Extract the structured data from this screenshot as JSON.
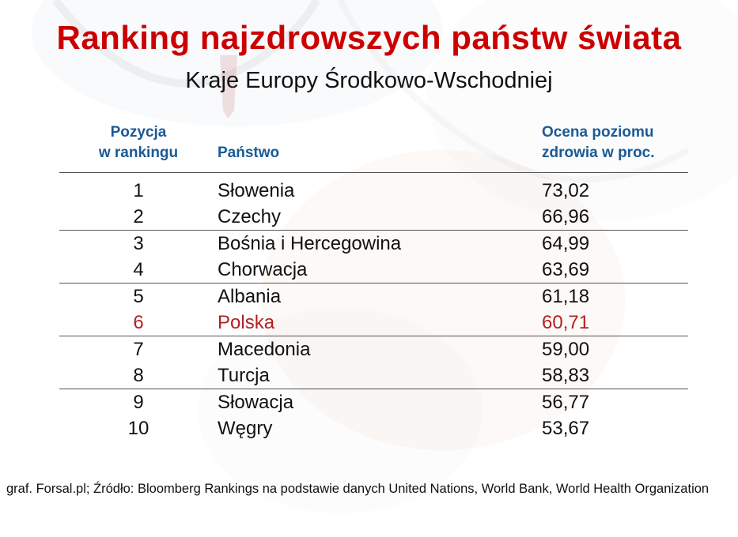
{
  "page": {
    "title": "Ranking najzdrowszych państw świata",
    "subtitle": "Kraje Europy Środkowo-Wschodniej",
    "footer": "graf. Forsal.pl; Źródło: Bloomberg Rankings na podstawie danych United Nations, World Bank, World Health Organization"
  },
  "table": {
    "col1_header": [
      "Pozycja",
      "w rankingu"
    ],
    "col2_header": "Państwo",
    "col3_header": [
      "Ocena poziomu",
      "zdrowia w proc."
    ],
    "rows": [
      {
        "pos": "1",
        "country": "Słowenia",
        "score": "73,02",
        "highlight": false
      },
      {
        "pos": "2",
        "country": "Czechy",
        "score": "66,96",
        "highlight": false
      },
      {
        "pos": "3",
        "country": "Bośnia i Hercegowina",
        "score": "64,99",
        "highlight": false
      },
      {
        "pos": "4",
        "country": "Chorwacja",
        "score": "63,69",
        "highlight": false
      },
      {
        "pos": "5",
        "country": "Albania",
        "score": "61,18",
        "highlight": false
      },
      {
        "pos": "6",
        "country": "Polska",
        "score": "60,71",
        "highlight": true
      },
      {
        "pos": "7",
        "country": "Macedonia",
        "score": "59,00",
        "highlight": false
      },
      {
        "pos": "8",
        "country": "Turcja",
        "score": "58,83",
        "highlight": false
      },
      {
        "pos": "9",
        "country": "Słowacja",
        "score": "56,77",
        "highlight": false
      },
      {
        "pos": "10",
        "country": "Węgry",
        "score": "53,67",
        "highlight": false
      }
    ]
  },
  "colors": {
    "title_red": "#cc0000",
    "header_blue": "#1a5a96",
    "highlight_red": "#b22222",
    "rule_gray": "#555555"
  },
  "chart_data": {
    "type": "table",
    "title": "Ranking najzdrowszych państw świata",
    "subtitle": "Kraje Europy Środkowo-Wschodniej",
    "columns": [
      "Pozycja w rankingu",
      "Państwo",
      "Ocena poziomu zdrowia w proc."
    ],
    "rows": [
      [
        "1",
        "Słowenia",
        "73,02"
      ],
      [
        "2",
        "Czechy",
        "66,96"
      ],
      [
        "3",
        "Bośnia i Hercegowina",
        "64,99"
      ],
      [
        "4",
        "Chorwacja",
        "63,69"
      ],
      [
        "5",
        "Albania",
        "61,18"
      ],
      [
        "6",
        "Polska",
        "60,71"
      ],
      [
        "7",
        "Macedonia",
        "59,00"
      ],
      [
        "8",
        "Turcja",
        "58,83"
      ],
      [
        "9",
        "Słowacja",
        "56,77"
      ],
      [
        "10",
        "Węgry",
        "53,67"
      ]
    ],
    "highlighted_row": "Polska",
    "source": "graf. Forsal.pl; Źródło: Bloomberg Rankings na podstawie danych United Nations, World Bank, World Health Organization"
  }
}
